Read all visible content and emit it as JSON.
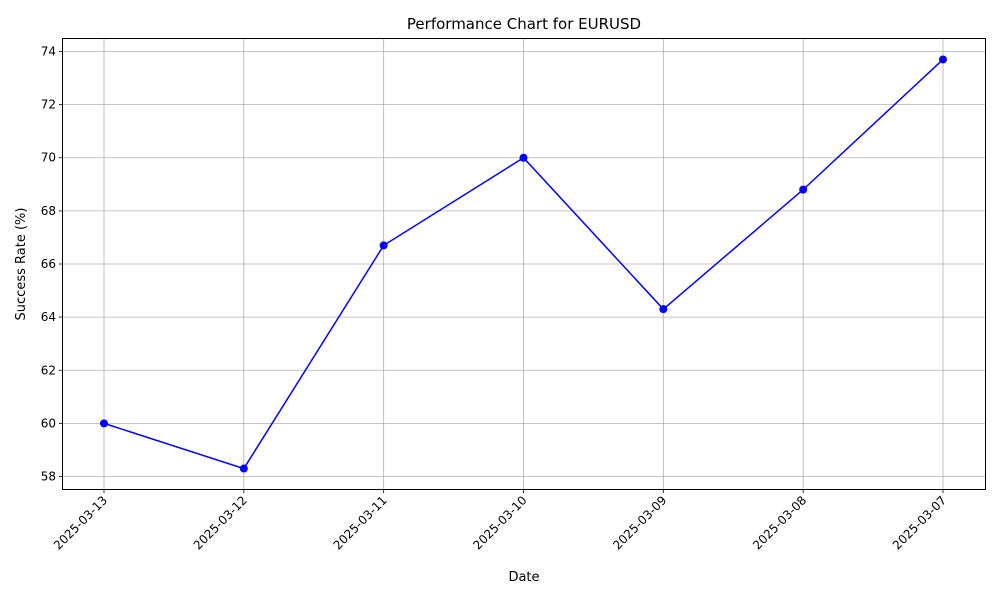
{
  "chart_data": {
    "type": "line",
    "title": "Performance Chart for EURUSD",
    "xlabel": "Date",
    "ylabel": "Success Rate (%)",
    "categories": [
      "2025-03-13",
      "2025-03-12",
      "2025-03-11",
      "2025-03-10",
      "2025-03-09",
      "2025-03-08",
      "2025-03-07"
    ],
    "series": [
      {
        "values": [
          60.0,
          58.3,
          66.7,
          70.0,
          64.3,
          68.8,
          73.7
        ],
        "color": "#0000ff",
        "marker": "circle"
      }
    ],
    "yticks": [
      58,
      60,
      62,
      64,
      66,
      68,
      70,
      72,
      74
    ],
    "ylim": [
      57.53,
      74.47
    ],
    "grid": true,
    "gridColor": "#b0b0b0",
    "xtick_rotation": 45
  }
}
